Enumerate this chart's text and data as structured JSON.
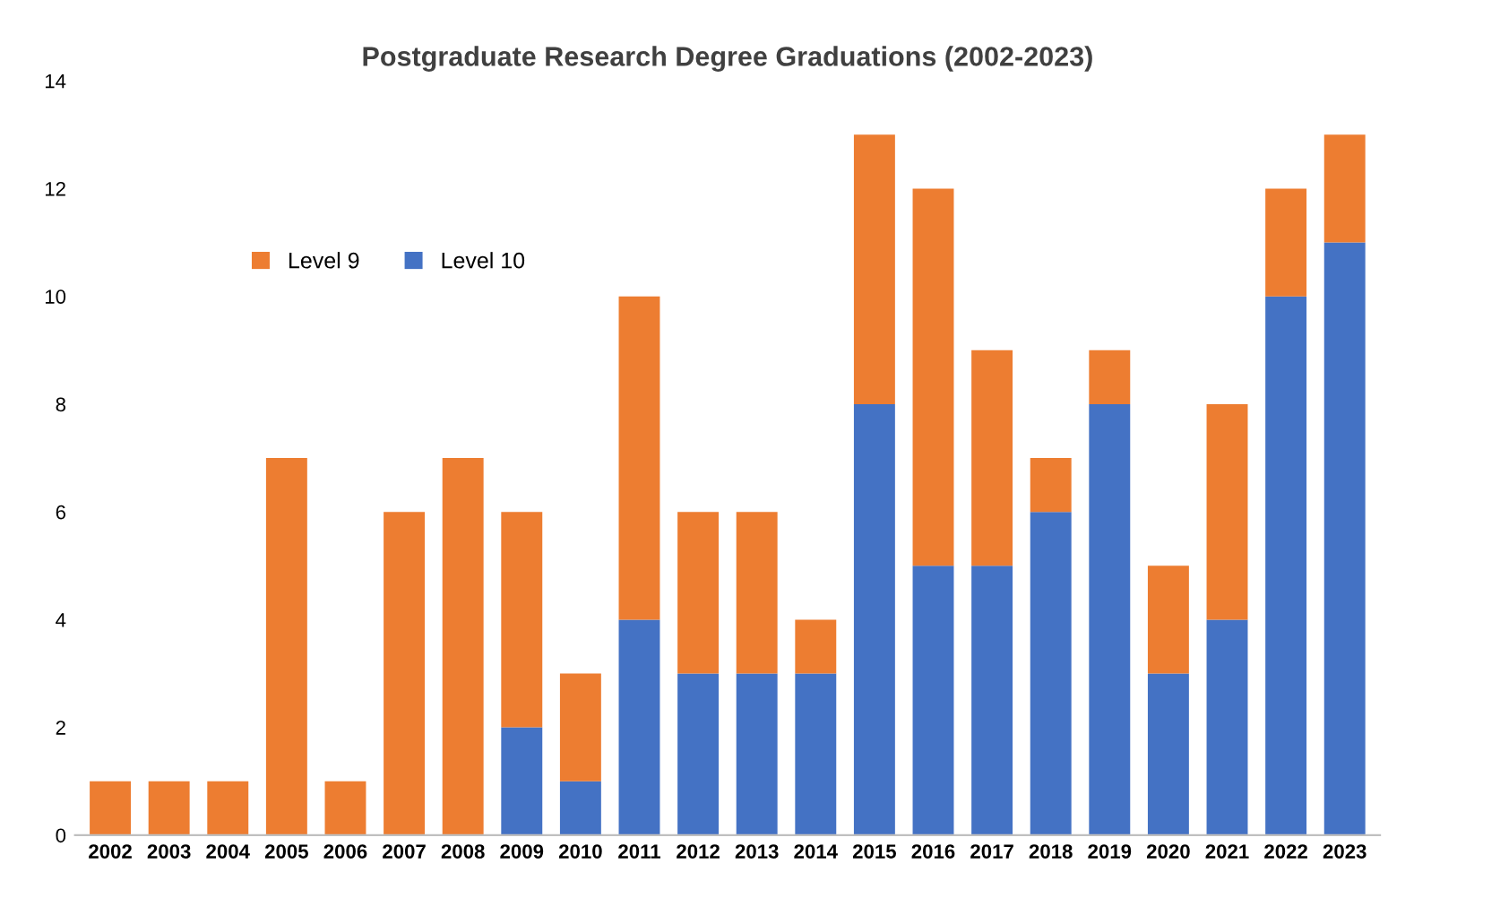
{
  "chart_data": {
    "type": "bar",
    "title": "Postgraduate Research Degree Graduations (2002-2023)",
    "categories": [
      "2002",
      "2003",
      "2004",
      "2005",
      "2006",
      "2007",
      "2008",
      "2009",
      "2010",
      "2011",
      "2012",
      "2013",
      "2014",
      "2015",
      "2016",
      "2017",
      "2018",
      "2019",
      "2020",
      "2021",
      "2022",
      "2023"
    ],
    "stacked": true,
    "series": [
      {
        "name": "Level 10",
        "color": "#4472c4",
        "values": [
          0,
          0,
          0,
          0,
          0,
          0,
          0,
          2,
          1,
          4,
          3,
          3,
          3,
          8,
          5,
          5,
          6,
          8,
          3,
          4,
          10,
          11
        ]
      },
      {
        "name": "Level 9",
        "color": "#ed7d31",
        "values": [
          1,
          1,
          1,
          7,
          1,
          6,
          7,
          4,
          2,
          6,
          3,
          3,
          1,
          5,
          7,
          4,
          1,
          1,
          2,
          4,
          2,
          2
        ]
      }
    ],
    "ylim": [
      0,
      14
    ],
    "yticks": [
      0,
      2,
      4,
      6,
      8,
      10,
      12,
      14
    ],
    "grid": false,
    "legend": "top left"
  }
}
